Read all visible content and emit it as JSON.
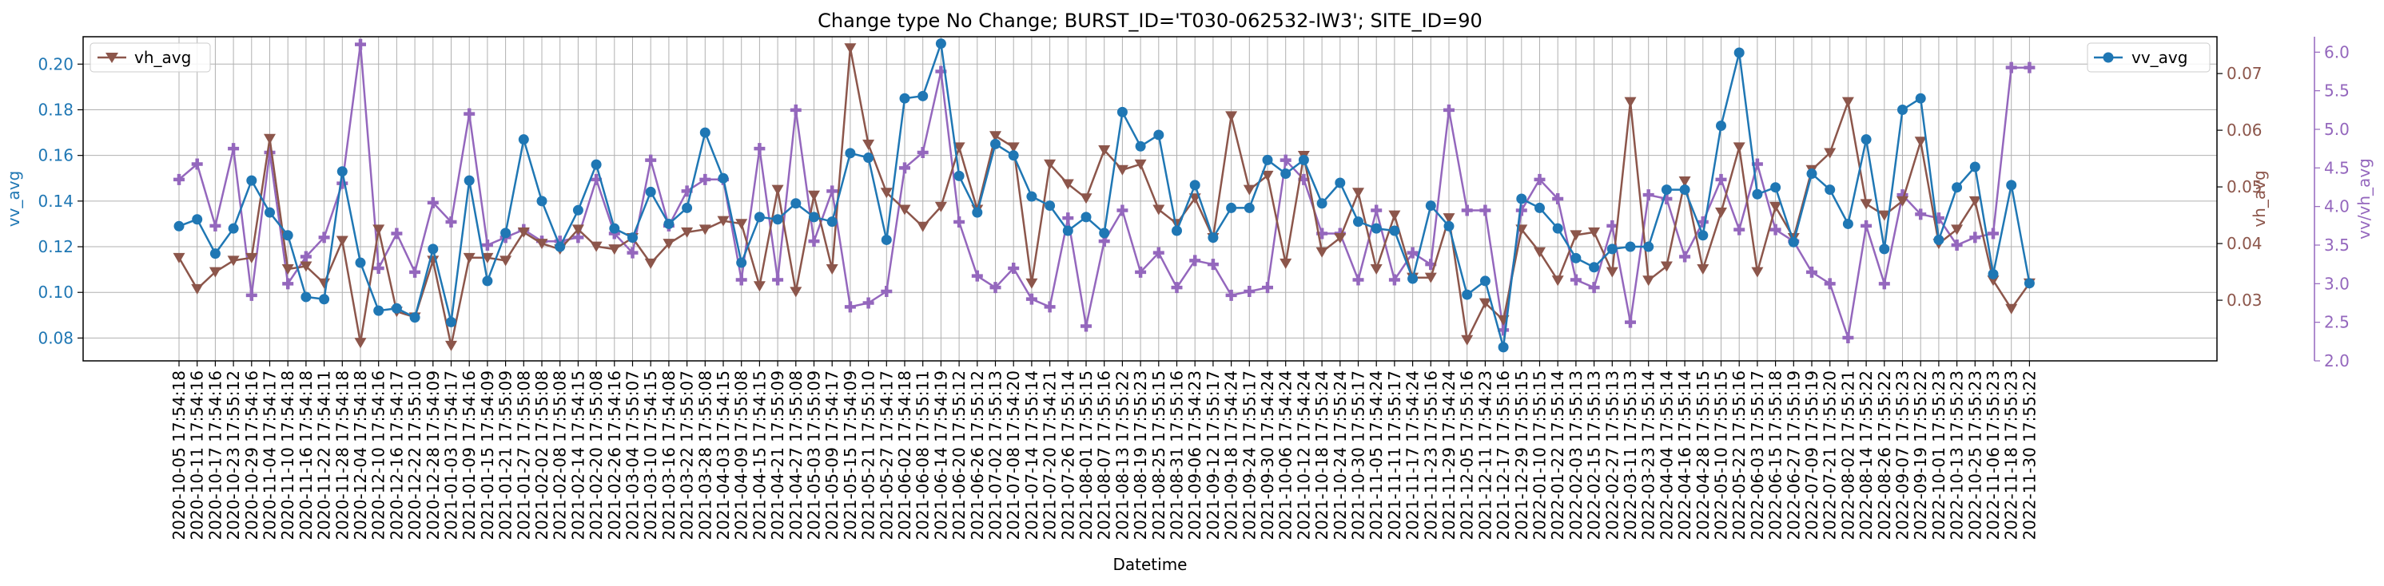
{
  "chart_data": {
    "type": "line",
    "title": "Change type No Change; BURST_ID='T030-062532-IW3'; SITE_ID=90",
    "xlabel": "Datetime",
    "grid": true,
    "x": [
      "2020-10-05 17:54:18",
      "2020-10-11 17:54:16",
      "2020-10-17 17:54:16",
      "2020-10-23 17:55:12",
      "2020-10-29 17:54:16",
      "2020-11-04 17:54:17",
      "2020-11-10 17:54:18",
      "2020-11-16 17:54:18",
      "2020-11-22 17:54:11",
      "2020-11-28 17:54:18",
      "2020-12-04 17:54:18",
      "2020-12-10 17:54:16",
      "2020-12-16 17:54:17",
      "2020-12-22 17:55:10",
      "2020-12-28 17:54:09",
      "2021-01-03 17:54:17",
      "2021-01-09 17:54:16",
      "2021-01-15 17:54:09",
      "2021-01-21 17:55:09",
      "2021-01-27 17:55:08",
      "2021-02-02 17:55:08",
      "2021-02-08 17:55:08",
      "2021-02-14 17:54:15",
      "2021-02-20 17:55:08",
      "2021-02-26 17:54:16",
      "2021-03-04 17:55:07",
      "2021-03-10 17:54:15",
      "2021-03-16 17:54:08",
      "2021-03-22 17:55:07",
      "2021-03-28 17:55:08",
      "2021-04-03 17:54:15",
      "2021-04-09 17:55:08",
      "2021-04-15 17:54:15",
      "2021-04-21 17:55:09",
      "2021-04-27 17:55:08",
      "2021-05-03 17:55:09",
      "2021-05-09 17:54:17",
      "2021-05-15 17:54:09",
      "2021-05-21 17:55:10",
      "2021-05-27 17:54:17",
      "2021-06-02 17:54:18",
      "2021-06-08 17:55:11",
      "2021-06-14 17:54:19",
      "2021-06-20 17:55:12",
      "2021-06-26 17:55:12",
      "2021-07-02 17:55:13",
      "2021-07-08 17:54:20",
      "2021-07-14 17:55:14",
      "2021-07-20 17:54:21",
      "2021-07-26 17:55:14",
      "2021-08-01 17:55:15",
      "2021-08-07 17:55:16",
      "2021-08-13 17:55:22",
      "2021-08-19 17:55:23",
      "2021-08-25 17:55:15",
      "2021-08-31 17:55:16",
      "2021-09-06 17:54:23",
      "2021-09-12 17:55:17",
      "2021-09-18 17:54:24",
      "2021-09-24 17:55:17",
      "2021-09-30 17:54:24",
      "2021-10-06 17:54:24",
      "2021-10-12 17:54:24",
      "2021-10-18 17:55:24",
      "2021-10-24 17:55:24",
      "2021-10-30 17:55:17",
      "2021-11-05 17:54:24",
      "2021-11-11 17:55:17",
      "2021-11-17 17:54:24",
      "2021-11-23 17:55:16",
      "2021-11-29 17:54:24",
      "2021-12-05 17:55:16",
      "2021-12-11 17:54:23",
      "2021-12-17 17:55:16",
      "2021-12-29 17:55:15",
      "2022-01-10 17:55:15",
      "2022-01-22 17:55:14",
      "2022-02-03 17:55:13",
      "2022-02-15 17:55:13",
      "2022-02-27 17:55:13",
      "2022-03-11 17:55:13",
      "2022-03-23 17:55:14",
      "2022-04-04 17:55:14",
      "2022-04-16 17:55:14",
      "2022-04-28 17:55:15",
      "2022-05-10 17:55:15",
      "2022-05-22 17:55:16",
      "2022-06-03 17:55:17",
      "2022-06-15 17:55:18",
      "2022-06-27 17:55:19",
      "2022-07-09 17:55:19",
      "2022-07-21 17:55:20",
      "2022-08-02 17:55:21",
      "2022-08-14 17:55:22",
      "2022-08-26 17:55:22",
      "2022-09-07 17:55:23",
      "2022-09-19 17:55:22",
      "2022-10-01 17:55:23",
      "2022-10-13 17:55:23",
      "2022-10-25 17:55:23",
      "2022-11-06 17:55:23",
      "2022-11-18 17:55:23",
      "2022-11-30 17:55:22"
    ],
    "x_tick_labels": [
      "2020-10-05 17:54:18",
      "2020-10-11 17:54:16",
      "2020-10-17 17:54:16",
      "2020-10-23 17:55:12",
      "2020-10-29 17:54:16",
      "2020-11-04 17:54:17",
      "2020-11-10 17:54:18",
      "2020-11-16 17:54:18",
      "2020-11-22 17:54:11",
      "2020-11-28 17:54:18",
      "2020-12-04 17:54:18",
      "2020-12-10 17:54:16",
      "2020-12-16 17:54:17",
      "2020-12-22 17:55:10",
      "2020-12-28 17:54:09",
      "2021-01-03 17:54:17",
      "2021-01-09 17:54:16",
      "2021-01-15 17:54:09",
      "2021-01-21 17:55:09",
      "2021-01-27 17:55:08",
      "2021-02-02 17:55:08",
      "2021-02-08 17:55:08",
      "2021-02-14 17:54:15",
      "2021-02-20 17:55:08",
      "2021-02-26 17:54:16",
      "2021-03-04 17:55:07",
      "2021-03-10 17:54:15",
      "2021-03-16 17:54:08",
      "2021-03-22 17:55:07",
      "2021-03-28 17:55:08",
      "2021-04-03 17:54:15",
      "2021-04-09 17:55:08",
      "2021-04-15 17:54:15",
      "2021-04-21 17:55:09",
      "2021-04-27 17:55:08",
      "2021-05-03 17:55:09",
      "2021-05-09 17:54:17",
      "2021-05-15 17:54:09",
      "2021-05-21 17:55:10",
      "2021-05-27 17:54:17",
      "2021-06-02 17:54:18",
      "2021-06-08 17:55:11",
      "2021-06-14 17:54:19",
      "2021-06-20 17:55:12",
      "2021-06-26 17:55:12",
      "2021-07-02 17:55:13",
      "2021-07-08 17:54:20",
      "2021-07-14 17:55:14",
      "2021-07-20 17:54:21",
      "2021-07-26 17:55:14",
      "2021-08-01 17:55:15",
      "2021-08-07 17:55:16",
      "2021-08-13 17:55:22",
      "2021-08-19 17:55:23",
      "2021-08-25 17:55:15",
      "2021-08-31 17:55:16",
      "2021-09-06 17:54:23",
      "2021-09-12 17:55:17",
      "2021-09-18 17:54:24",
      "2021-09-24 17:55:17",
      "2021-09-30 17:54:24",
      "2021-10-06 17:54:24",
      "2021-10-12 17:54:24",
      "2021-10-18 17:55:24",
      "2021-10-24 17:55:24",
      "2021-10-30 17:55:17",
      "2021-11-05 17:54:24",
      "2021-11-11 17:55:17",
      "2021-11-17 17:54:24",
      "2021-11-23 17:55:16",
      "2021-11-29 17:54:24",
      "2021-12-05 17:55:16",
      "2021-12-11 17:54:23",
      "2021-12-17 17:55:16",
      "2021-12-29 17:55:15",
      "2022-01-10 17:55:15",
      "2022-01-22 17:55:14",
      "2022-02-03 17:55:13",
      "2022-02-15 17:55:13",
      "2022-02-27 17:55:13",
      "2022-03-11 17:55:13",
      "2022-03-23 17:55:14",
      "2022-04-04 17:55:14",
      "2022-04-16 17:55:14",
      "2022-04-28 17:55:15",
      "2022-05-10 17:55:15",
      "2022-05-22 17:55:16",
      "2022-06-03 17:55:17",
      "2022-06-15 17:55:18",
      "2022-06-27 17:55:19",
      "2022-07-09 17:55:19",
      "2022-07-21 17:55:20",
      "2022-08-02 17:55:21",
      "2022-08-14 17:55:22",
      "2022-08-26 17:55:22",
      "2022-09-07 17:55:23",
      "2022-09-19 17:55:22",
      "2022-10-01 17:55:23",
      "2022-10-13 17:55:23",
      "2022-10-25 17:55:23",
      "2022-11-06 17:55:23",
      "2022-11-18 17:55:23",
      "2022-11-30 17:55:22"
    ],
    "axes": {
      "vv": {
        "label": "vv_avg",
        "color": "#1f77b4",
        "ylim": [
          0.07,
          0.212
        ],
        "ticks": [
          0.08,
          0.1,
          0.12,
          0.14,
          0.16,
          0.18,
          0.2
        ],
        "tick_labels": [
          "0.08",
          "0.10",
          "0.12",
          "0.14",
          "0.16",
          "0.18",
          "0.20"
        ]
      },
      "vh": {
        "label": "vh_avg",
        "color": "#8c564b",
        "ylim": [
          0.0193,
          0.0765
        ],
        "ticks": [
          0.03,
          0.04,
          0.05,
          0.06,
          0.07
        ],
        "tick_labels": [
          "0.03",
          "0.04",
          "0.05",
          "0.06",
          "0.07"
        ]
      },
      "ratio": {
        "label": "vv/vh_avg",
        "color": "#9467bd",
        "ylim": [
          2.0,
          6.2
        ],
        "ticks": [
          2.0,
          2.5,
          3.0,
          3.5,
          4.0,
          4.5,
          5.0,
          5.5,
          6.0
        ],
        "tick_labels": [
          "2.0",
          "2.5",
          "3.0",
          "3.5",
          "4.0",
          "4.5",
          "5.0",
          "5.5",
          "6.0"
        ]
      }
    },
    "legends": {
      "left": {
        "label": "vh_avg",
        "placement": "top-left"
      },
      "right": {
        "label": "vv_avg",
        "placement": "top-right"
      }
    },
    "series": [
      {
        "name": "vv_avg",
        "axis": "vv",
        "color": "#1f77b4",
        "marker": "circle",
        "values": [
          0.129,
          0.132,
          0.117,
          0.128,
          0.149,
          0.135,
          0.125,
          0.098,
          0.097,
          0.153,
          0.113,
          0.092,
          0.093,
          0.089,
          0.119,
          0.087,
          0.149,
          0.105,
          0.126,
          0.167,
          0.14,
          0.12,
          0.136,
          0.156,
          0.128,
          0.124,
          0.144,
          0.13,
          0.137,
          0.17,
          0.15,
          0.113,
          0.133,
          0.132,
          0.139,
          0.133,
          0.131,
          0.161,
          0.159,
          0.123,
          0.185,
          0.186,
          0.209,
          0.151,
          0.135,
          0.165,
          0.16,
          0.142,
          0.138,
          0.127,
          0.133,
          0.126,
          0.179,
          0.164,
          0.169,
          0.127,
          0.147,
          0.124,
          0.137,
          0.137,
          0.158,
          0.152,
          0.158,
          0.139,
          0.148,
          0.131,
          0.128,
          0.127,
          0.106,
          0.138,
          0.129,
          0.099,
          0.105,
          0.076,
          0.141,
          0.137,
          0.128,
          0.115,
          0.111,
          0.119,
          0.12,
          0.12,
          0.145,
          0.145,
          0.125,
          0.173,
          0.205,
          0.143,
          0.146,
          0.122,
          0.152,
          0.145,
          0.13,
          0.167,
          0.119,
          0.18,
          0.185,
          0.123,
          0.146,
          0.155,
          0.108,
          0.147,
          0.104
        ]
      },
      {
        "name": "vh_avg",
        "axis": "vh",
        "color": "#8c564b",
        "marker": "triangle-down",
        "values": [
          0.0375,
          0.032,
          0.035,
          0.037,
          0.0375,
          0.0585,
          0.0355,
          0.036,
          0.033,
          0.0405,
          0.0225,
          0.0425,
          0.028,
          0.027,
          0.037,
          0.022,
          0.0375,
          0.0375,
          0.037,
          0.042,
          0.04,
          0.039,
          0.0425,
          0.0395,
          0.039,
          0.041,
          0.0365,
          0.04,
          0.042,
          0.0425,
          0.044,
          0.0435,
          0.0325,
          0.0495,
          0.0315,
          0.0485,
          0.0355,
          0.0745,
          0.0575,
          0.049,
          0.046,
          0.043,
          0.0465,
          0.057,
          0.046,
          0.059,
          0.057,
          0.033,
          0.054,
          0.0505,
          0.048,
          0.0565,
          0.053,
          0.054,
          0.046,
          0.0435,
          0.048,
          0.041,
          0.0625,
          0.0495,
          0.052,
          0.0365,
          0.0555,
          0.0385,
          0.041,
          0.049,
          0.0355,
          0.045,
          0.034,
          0.034,
          0.0445,
          0.023,
          0.0295,
          0.0265,
          0.0425,
          0.0385,
          0.0335,
          0.0415,
          0.042,
          0.035,
          0.065,
          0.0335,
          0.036,
          0.051,
          0.0355,
          0.0455,
          0.057,
          0.035,
          0.0465,
          0.041,
          0.053,
          0.056,
          0.065,
          0.047,
          0.045,
          0.0475,
          0.058,
          0.04,
          0.0425,
          0.0475,
          0.0335,
          0.0285,
          0.033
        ]
      },
      {
        "name": "vv/vh_avg",
        "axis": "ratio",
        "color": "#9467bd",
        "marker": "plus",
        "values": [
          4.35,
          4.55,
          3.75,
          4.75,
          2.85,
          4.7,
          3.0,
          3.35,
          3.6,
          4.3,
          6.1,
          3.2,
          3.65,
          3.15,
          4.05,
          3.8,
          5.2,
          3.5,
          3.6,
          3.7,
          3.55,
          3.55,
          3.6,
          4.35,
          3.65,
          3.4,
          4.6,
          3.75,
          4.2,
          4.35,
          4.35,
          3.05,
          4.75,
          3.05,
          5.25,
          3.55,
          4.2,
          2.7,
          2.75,
          2.9,
          4.5,
          4.7,
          5.75,
          3.8,
          3.1,
          2.95,
          3.2,
          2.8,
          2.7,
          3.85,
          2.45,
          3.55,
          3.95,
          3.15,
          3.4,
          2.95,
          3.3,
          3.25,
          2.85,
          2.9,
          2.95,
          4.6,
          4.35,
          3.65,
          3.65,
          3.05,
          3.95,
          3.05,
          3.4,
          3.25,
          5.25,
          3.95,
          3.95,
          2.4,
          3.95,
          4.35,
          4.1,
          3.05,
          2.95,
          3.75,
          2.5,
          4.15,
          4.1,
          3.35,
          3.8,
          4.35,
          3.7,
          4.55,
          3.7,
          3.55,
          3.15,
          3.0,
          2.3,
          3.75,
          3.0,
          4.15,
          3.9,
          3.85,
          3.5,
          3.6,
          3.65,
          5.8,
          5.8
        ]
      }
    ]
  }
}
